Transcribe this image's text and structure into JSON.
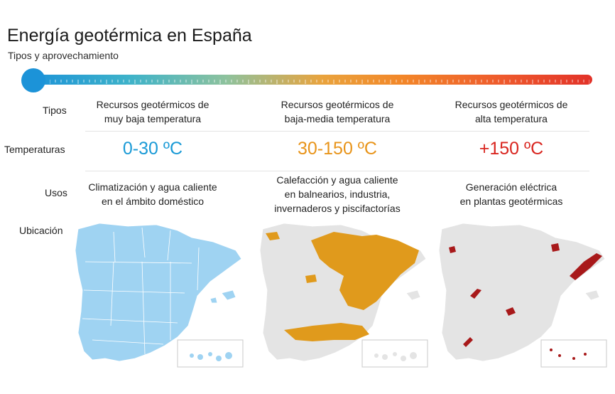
{
  "title": "Energía geotérmica en España",
  "subtitle": "Tipos y aprovechamiento",
  "row_labels": {
    "tipos": "Tipos",
    "temperaturas": "Temperaturas",
    "usos": "Usos",
    "ubicacion": "Ubicación"
  },
  "columns": [
    {
      "tipo_line1": "Recursos geotérmicos de",
      "tipo_line2": "muy baja temperatura",
      "temperatura": "0-30 ºC",
      "usos_line1": "Climatización y agua caliente",
      "usos_line2": "en el ámbito doméstico",
      "usos_line3": "",
      "color": "#1a9ad6",
      "map_fill": "#9fd3f2",
      "map_border": "#ffffff"
    },
    {
      "tipo_line1": "Recursos geotérmicos de",
      "tipo_line2": "baja-media temperatura",
      "temperatura": "30-150 ºC",
      "usos_line1": "Calefacción y agua caliente",
      "usos_line2": "en balnearios, industria,",
      "usos_line3": "invernaderos y piscifactorías",
      "color": "#e8941a",
      "map_fill": "#e4e4e4",
      "resource_fill": "#e09a1c"
    },
    {
      "tipo_line1": "Recursos geotérmicos de",
      "tipo_line2": "alta temperatura",
      "temperatura": "+150 ºC",
      "usos_line1": "Generación eléctrica",
      "usos_line2": "en plantas geotérmicas",
      "usos_line3": "",
      "color": "#d9251f",
      "map_fill": "#e4e4e4",
      "resource_fill": "#a8191a"
    }
  ],
  "scale": {
    "gradient_start": "#1c93d8",
    "gradient_end": "#e23229"
  }
}
